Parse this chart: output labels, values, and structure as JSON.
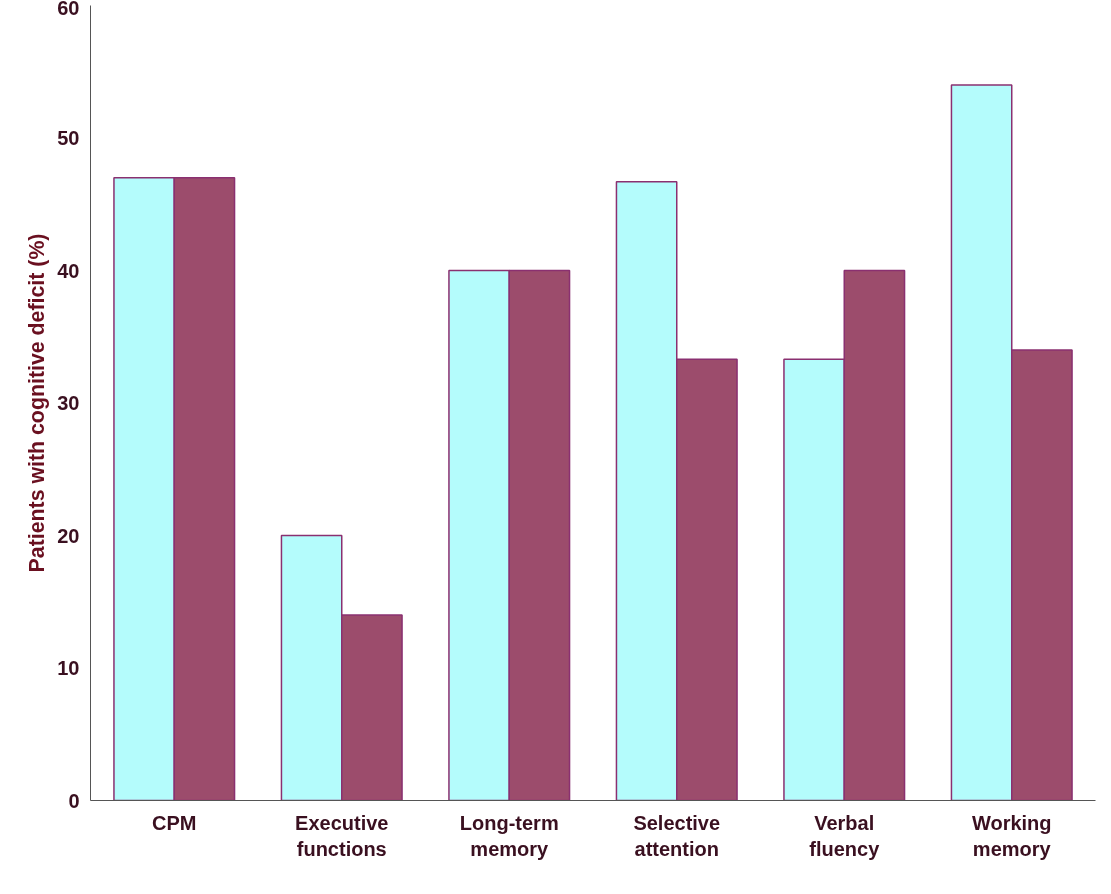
{
  "chart_data": {
    "type": "bar",
    "ylabel": "Patients with cognitive deficit (%)",
    "categories": [
      "CPM",
      "Executive functions",
      "Long-term memory",
      "Selective attention",
      "Verbal fluency",
      "Working memory"
    ],
    "series": [
      {
        "color": "#b4fcfc",
        "values": [
          47,
          20,
          40,
          46.7,
          33.3,
          54
        ]
      },
      {
        "color": "#9c4c6c",
        "values": [
          47,
          14,
          40,
          33.3,
          40,
          34
        ]
      }
    ],
    "ylim": [
      0,
      60
    ],
    "yticks": [
      0,
      10,
      20,
      30,
      40,
      50,
      60
    ],
    "grid": false
  }
}
